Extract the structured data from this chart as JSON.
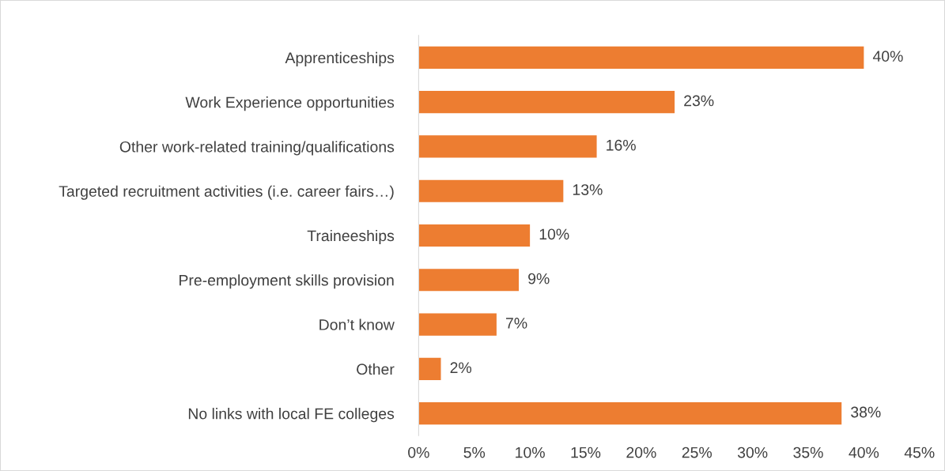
{
  "chart_data": {
    "type": "bar",
    "orientation": "horizontal",
    "categories": [
      "Apprenticeships",
      "Work Experience opportunities",
      "Other work-related training/qualifications",
      "Targeted recruitment activities (i.e. career fairs…)",
      "Traineeships",
      "Pre-employment skills provision",
      "Don’t know",
      "Other",
      "No links with local FE colleges"
    ],
    "values": [
      40,
      23,
      16,
      13,
      10,
      9,
      7,
      2,
      38
    ],
    "value_labels": [
      "40%",
      "23%",
      "16%",
      "13%",
      "10%",
      "9%",
      "7%",
      "2%",
      "38%"
    ],
    "color": "#ed7d31",
    "xlim": [
      0,
      45
    ],
    "xticks": [
      {
        "value": 0,
        "label": "0%"
      },
      {
        "value": 5,
        "label": "5%"
      },
      {
        "value": 10,
        "label": "10%"
      },
      {
        "value": 15,
        "label": "15%"
      },
      {
        "value": 20,
        "label": "20%"
      },
      {
        "value": 25,
        "label": "25%"
      },
      {
        "value": 30,
        "label": "30%"
      },
      {
        "value": 35,
        "label": "35%"
      },
      {
        "value": 40,
        "label": "40%"
      },
      {
        "value": 45,
        "label": "45%"
      }
    ],
    "grid": false
  }
}
